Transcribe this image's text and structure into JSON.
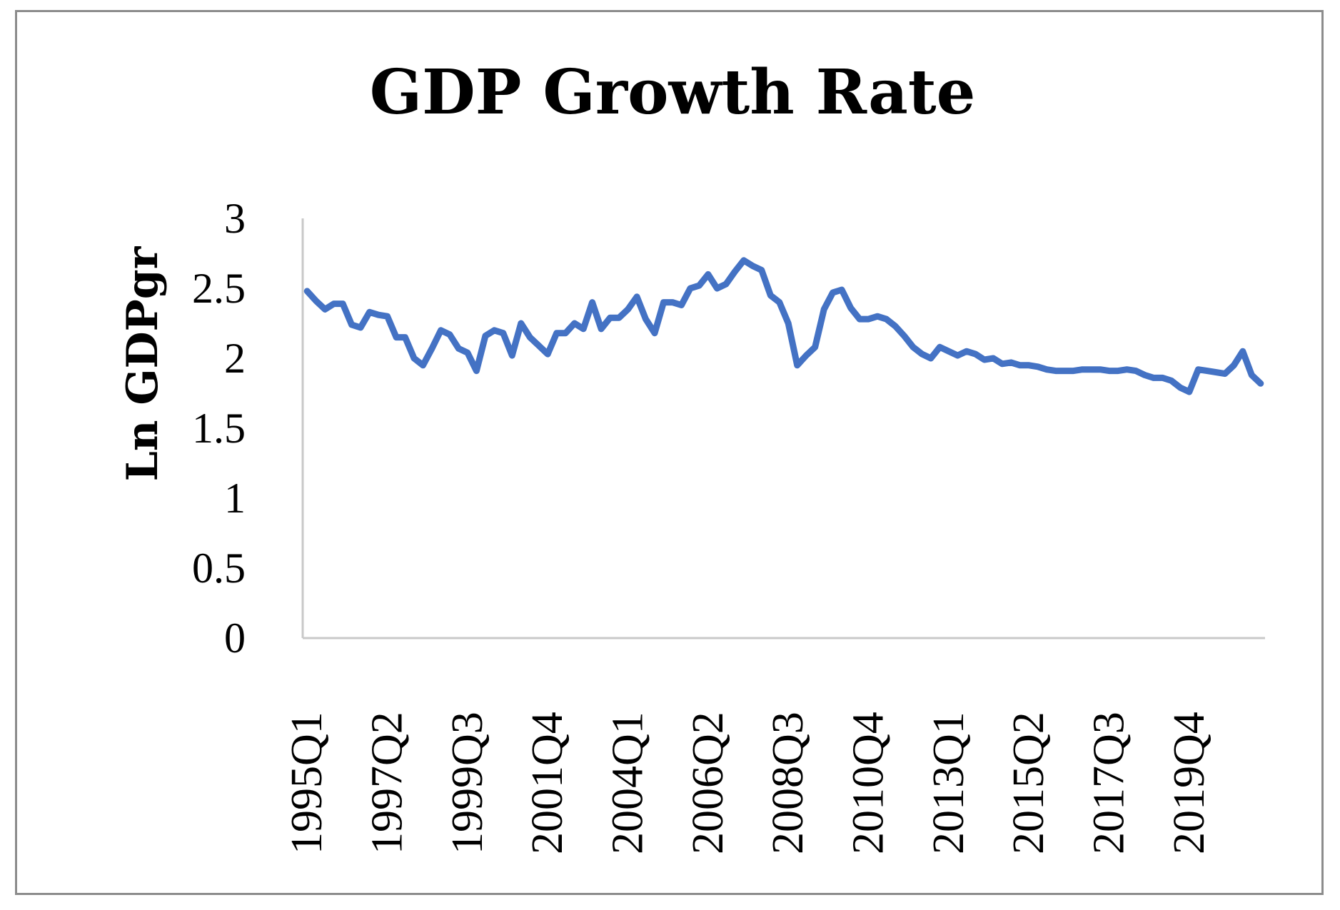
{
  "chart_data": {
    "type": "line",
    "title": "GDP Growth Rate",
    "xlabel": "",
    "ylabel": "Ln GDPgr",
    "ylim": [
      0,
      3
    ],
    "yticks": [
      "0",
      "0.5",
      "1",
      "1.5",
      "2",
      "2.5",
      "3"
    ],
    "ytick_values": [
      0,
      0.5,
      1,
      1.5,
      2,
      2.5,
      3
    ],
    "xtick_labels": [
      "1995Q1",
      "1997Q2",
      "1999Q3",
      "2001Q4",
      "2004Q1",
      "2006Q2",
      "2008Q3",
      "2010Q4",
      "2013Q1",
      "2015Q2",
      "2017Q3",
      "2019Q4"
    ],
    "xtick_indices": [
      0,
      9,
      18,
      27,
      36,
      45,
      54,
      63,
      72,
      81,
      90,
      99
    ],
    "grid": false,
    "legend": "none",
    "series": [
      {
        "name": "Ln GDPgr",
        "color": "#4472c4",
        "start_period": "1995Q1",
        "values": [
          2.48,
          2.41,
          2.35,
          2.39,
          2.39,
          2.24,
          2.22,
          2.33,
          2.31,
          2.3,
          2.15,
          2.15,
          2.0,
          1.95,
          2.07,
          2.2,
          2.17,
          2.07,
          2.04,
          1.91,
          2.16,
          2.2,
          2.18,
          2.02,
          2.25,
          2.15,
          2.09,
          2.03,
          2.18,
          2.18,
          2.25,
          2.21,
          2.4,
          2.21,
          2.29,
          2.29,
          2.35,
          2.44,
          2.28,
          2.18,
          2.4,
          2.4,
          2.38,
          2.5,
          2.52,
          2.6,
          2.5,
          2.53,
          2.62,
          2.7,
          2.66,
          2.63,
          2.45,
          2.4,
          2.25,
          1.95,
          2.02,
          2.08,
          2.35,
          2.47,
          2.49,
          2.36,
          2.28,
          2.28,
          2.3,
          2.28,
          2.23,
          2.16,
          2.08,
          2.03,
          2.0,
          2.08,
          2.05,
          2.02,
          2.05,
          2.03,
          1.99,
          2.0,
          1.96,
          1.97,
          1.95,
          1.95,
          1.94,
          1.92,
          1.91,
          1.91,
          1.91,
          1.92,
          1.92,
          1.92,
          1.91,
          1.91,
          1.92,
          1.91,
          1.88,
          1.86,
          1.86,
          1.84,
          1.79,
          1.76,
          1.92,
          1.91,
          1.9,
          1.89,
          1.95,
          2.05,
          1.88,
          1.82
        ]
      }
    ]
  }
}
